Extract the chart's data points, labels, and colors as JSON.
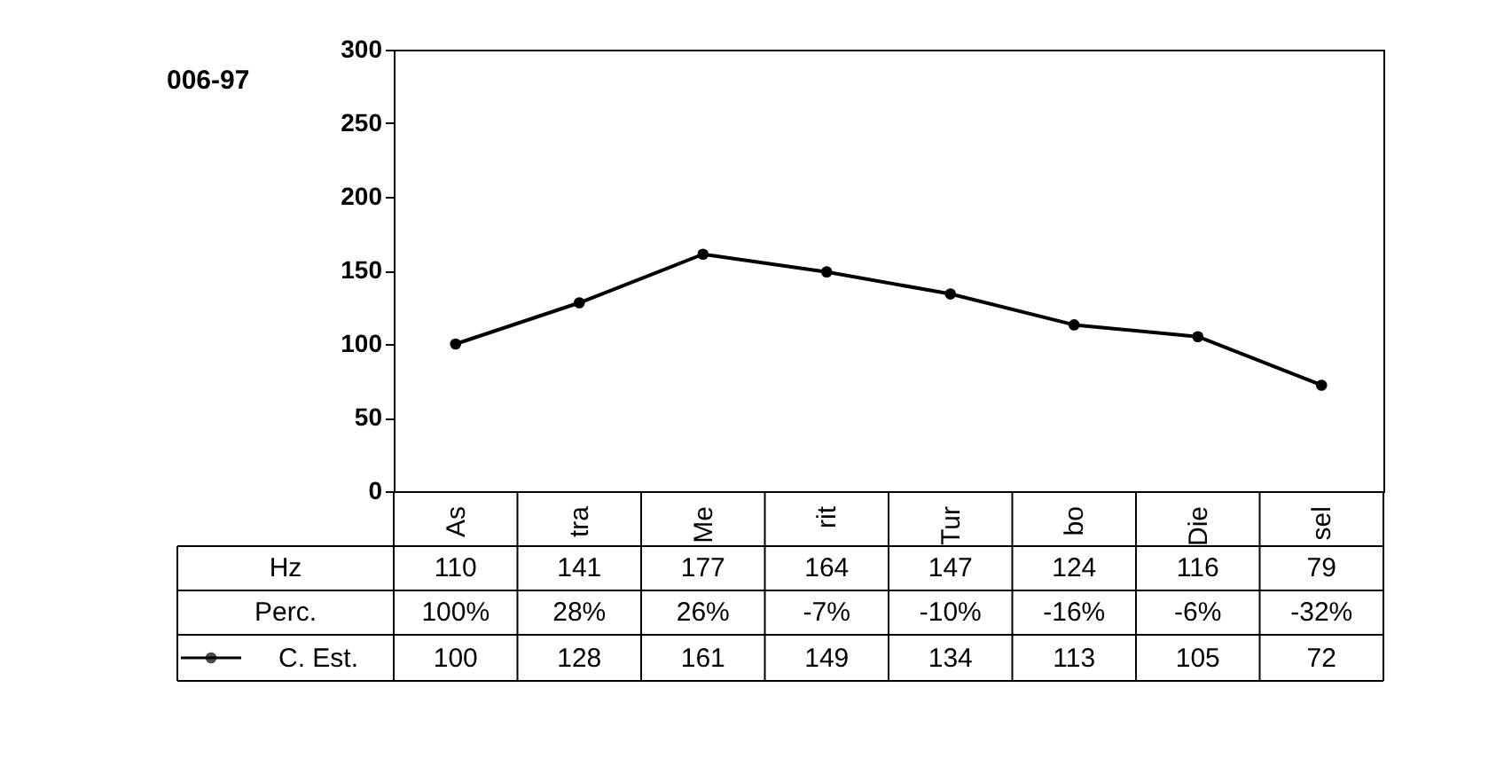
{
  "chart_data": {
    "type": "line",
    "title": "006-97",
    "categories": [
      "As",
      "tra",
      "Me",
      "rit",
      "Tur",
      "bo",
      "Die",
      "sel"
    ],
    "series": [
      {
        "name": "C. Est.",
        "color": "#000000",
        "values": [
          100,
          128,
          161,
          149,
          134,
          113,
          105,
          72
        ]
      }
    ],
    "ylim": [
      0,
      300
    ],
    "yticks": [
      0,
      50,
      100,
      150,
      200,
      250,
      300
    ],
    "grid": false,
    "marker": "circle",
    "line_style": "solid",
    "legend": "bottom",
    "data_labels": true,
    "annotations": [
      "Hz",
      "110",
      "141",
      "177",
      "164",
      "147",
      "124",
      "116",
      "79",
      "Perc.",
      "100%",
      "28%",
      "26%",
      "-7%",
      "-10%",
      "-16%",
      "-6%",
      "-32%"
    ]
  }
}
